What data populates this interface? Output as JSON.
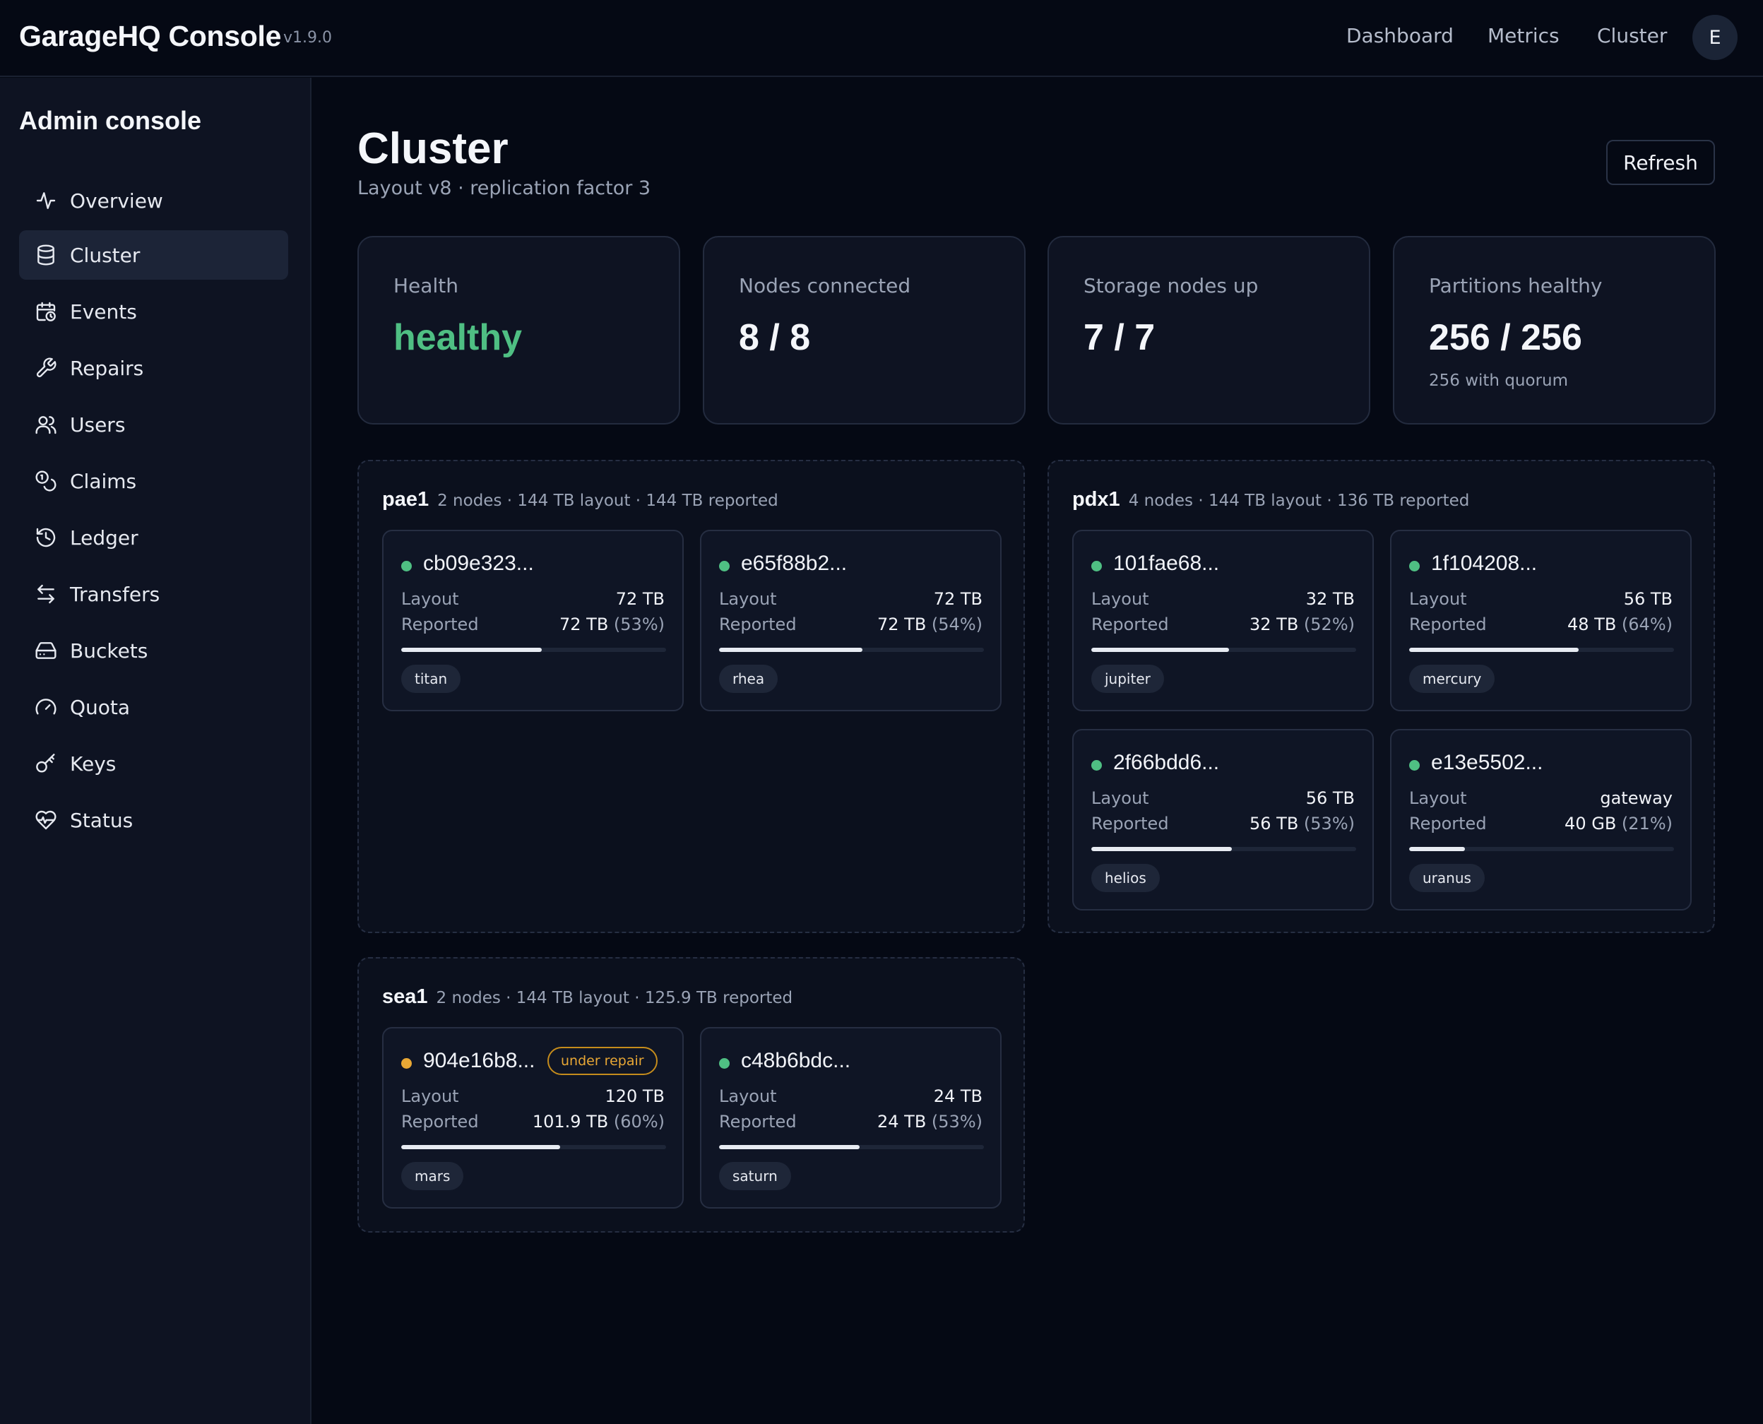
{
  "topbar": {
    "brand": "GarageHQ Console",
    "version": "v1.9.0",
    "nav": [
      "Dashboard",
      "Metrics",
      "Cluster"
    ],
    "avatar_initial": "E"
  },
  "sidebar": {
    "title": "Admin console",
    "items": [
      {
        "label": "Overview",
        "icon": "activity-icon"
      },
      {
        "label": "Cluster",
        "icon": "database-icon",
        "active": true
      },
      {
        "label": "Events",
        "icon": "calendar-clock-icon"
      },
      {
        "label": "Repairs",
        "icon": "wrench-icon"
      },
      {
        "label": "Users",
        "icon": "users-icon"
      },
      {
        "label": "Claims",
        "icon": "coins-icon"
      },
      {
        "label": "Ledger",
        "icon": "history-icon"
      },
      {
        "label": "Transfers",
        "icon": "arrows-left-right-icon"
      },
      {
        "label": "Buckets",
        "icon": "hard-drive-icon"
      },
      {
        "label": "Quota",
        "icon": "gauge-icon"
      },
      {
        "label": "Keys",
        "icon": "key-icon"
      },
      {
        "label": "Status",
        "icon": "heart-pulse-icon"
      }
    ]
  },
  "header": {
    "title": "Cluster",
    "subtitle": "Layout v8 · replication factor 3",
    "refresh_label": "Refresh"
  },
  "stats": [
    {
      "label": "Health",
      "value": "healthy",
      "note": "",
      "status_color": "#4fbf83"
    },
    {
      "label": "Nodes connected",
      "value": "8 / 8",
      "note": ""
    },
    {
      "label": "Storage nodes up",
      "value": "7 / 7",
      "note": ""
    },
    {
      "label": "Partitions healthy",
      "value": "256 / 256",
      "note": "256 with quorum"
    }
  ],
  "labels": {
    "layout": "Layout",
    "reported": "Reported"
  },
  "colors": {
    "node_ok": "#4fbf83",
    "node_repair": "#e8a735"
  },
  "zones": [
    {
      "name": "pae1",
      "meta": "2 nodes · 144 TB layout · 144 TB reported",
      "nodes": [
        {
          "id": "cb09e323...",
          "layout": "72 TB",
          "reported": "72 TB",
          "percent": "(53%)",
          "usage": 0.53,
          "tag": "titan",
          "status": "ok"
        },
        {
          "id": "e65f88b2...",
          "layout": "72 TB",
          "reported": "72 TB",
          "percent": "(54%)",
          "usage": 0.54,
          "tag": "rhea",
          "status": "ok"
        }
      ]
    },
    {
      "name": "pdx1",
      "meta": "4 nodes · 144 TB layout · 136 TB reported",
      "nodes": [
        {
          "id": "101fae68...",
          "layout": "32 TB",
          "reported": "32 TB",
          "percent": "(52%)",
          "usage": 0.52,
          "tag": "jupiter",
          "status": "ok"
        },
        {
          "id": "1f104208...",
          "layout": "56 TB",
          "reported": "48 TB",
          "percent": "(64%)",
          "usage": 0.64,
          "tag": "mercury",
          "status": "ok"
        },
        {
          "id": "2f66bdd6...",
          "layout": "56 TB",
          "reported": "56 TB",
          "percent": "(53%)",
          "usage": 0.53,
          "tag": "helios",
          "status": "ok"
        },
        {
          "id": "e13e5502...",
          "layout": "gateway",
          "reported": "40 GB",
          "percent": "(21%)",
          "usage": 0.21,
          "tag": "uranus",
          "status": "ok"
        }
      ]
    },
    {
      "name": "sea1",
      "meta": "2 nodes · 144 TB layout · 125.9 TB reported",
      "nodes": [
        {
          "id": "904e16b8...",
          "badge": "under repair",
          "layout": "120 TB",
          "reported": "101.9 TB",
          "percent": "(60%)",
          "usage": 0.6,
          "tag": "mars",
          "status": "repair"
        },
        {
          "id": "c48b6bdc...",
          "layout": "24 TB",
          "reported": "24 TB",
          "percent": "(53%)",
          "usage": 0.53,
          "tag": "saturn",
          "status": "ok"
        }
      ]
    }
  ]
}
